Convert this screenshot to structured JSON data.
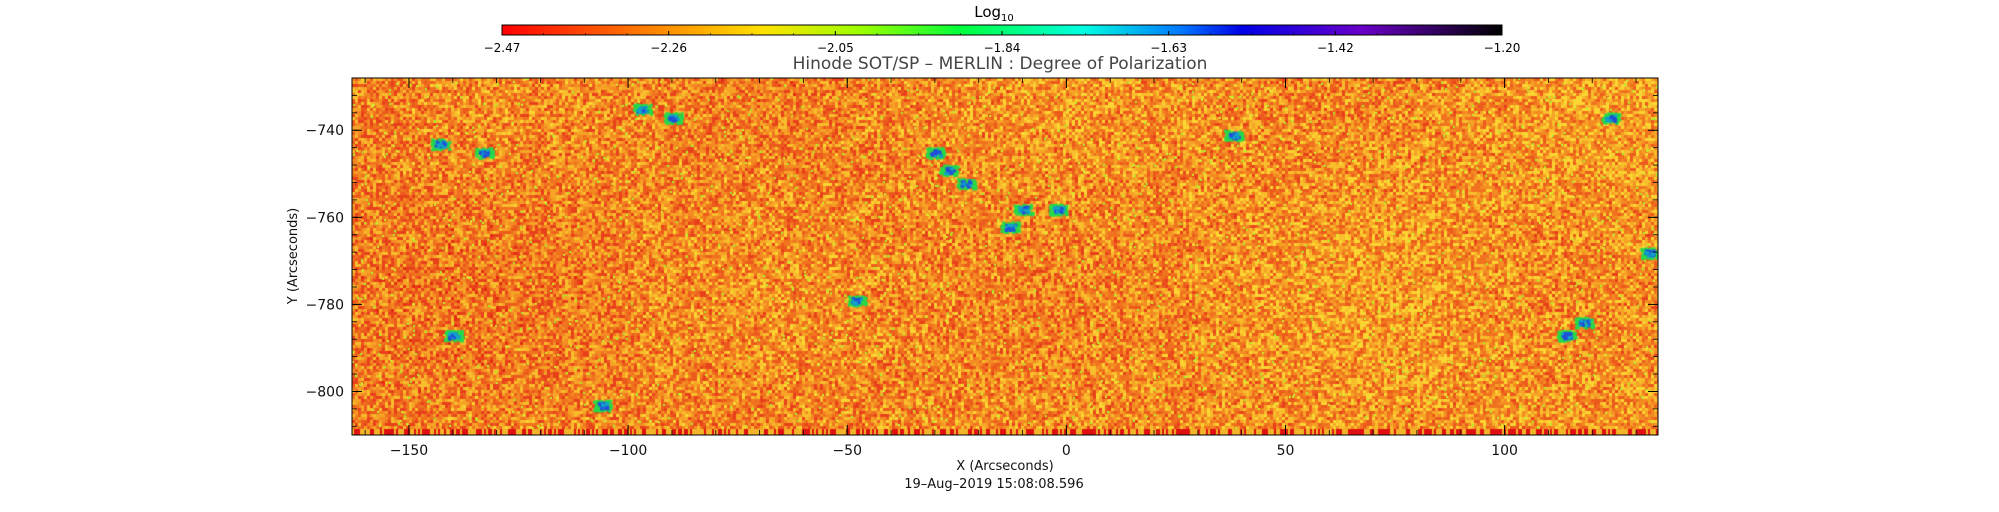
{
  "chart_data": {
    "type": "heatmap",
    "title": "Hinode SOT/SP – MERLIN : Degree of Polarization",
    "xlabel": "X (Arcseconds)",
    "ylabel": "Y (Arcseconds)",
    "timestamp": "19–Aug–2019 15:08:08.596",
    "xlim": [
      -163,
      135
    ],
    "ylim": [
      -810,
      -728
    ],
    "x_ticks": [
      -150,
      -100,
      -50,
      0,
      50,
      100
    ],
    "y_ticks": [
      -740,
      -760,
      -780,
      -800
    ],
    "colorbar": {
      "label_base": "Log",
      "label_sub": "10",
      "ticks": [
        "−2.47",
        "−2.26",
        "−2.05",
        "−1.84",
        "−1.63",
        "−1.42",
        "−1.20"
      ],
      "range": [
        -2.47,
        -1.2
      ],
      "colormap": "rainbow-red-to-black"
    },
    "grid": false,
    "legend": "none"
  },
  "colors": {
    "background": "#ffffff",
    "axis": "#000000",
    "dominant_low": "#e8501a",
    "dominant_mid": "#f39c1e",
    "high": "#1f4fd9"
  }
}
